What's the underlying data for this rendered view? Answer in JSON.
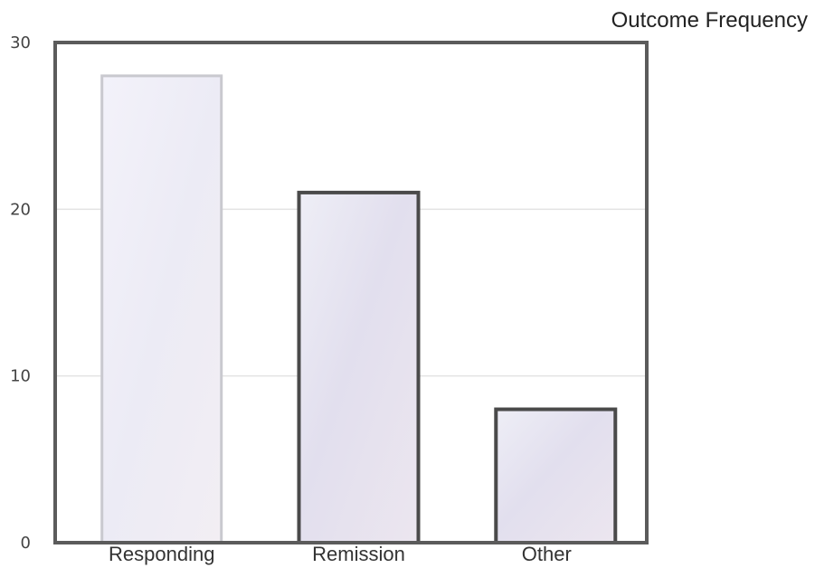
{
  "chart_data": {
    "type": "bar",
    "title": "Outcome Frequency",
    "xlabel": "",
    "ylabel": "",
    "categories": [
      "Responding",
      "Remission",
      "Other"
    ],
    "values": [
      28,
      21,
      8
    ],
    "ylim": [
      0,
      30
    ],
    "yticks": [
      "0",
      "10",
      "20",
      "30"
    ],
    "grid": true,
    "legend": "none",
    "colors": {
      "frame": "#5b5b5b",
      "bar_fill": "#e9e7f3",
      "bar_fill_alt": "#dcd9ec",
      "bar_edge_first": "#c9c9cf",
      "bar_edge": "#4a4a4a",
      "grid": "#e3e3e3",
      "text": "#333333"
    }
  }
}
